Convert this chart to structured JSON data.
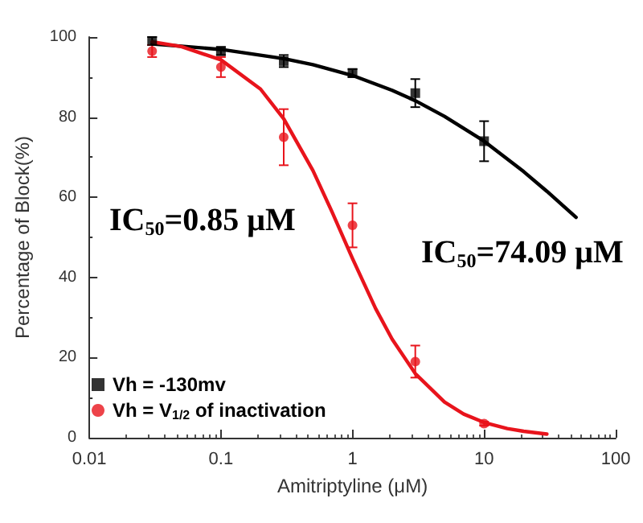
{
  "chart_data": {
    "type": "scatter",
    "xlabel": "Amitriptyline (μM)",
    "ylabel": "Percentage of Block(%)",
    "log": "x",
    "xlim": [
      0.01,
      100
    ],
    "xticks": [
      0.01,
      0.1,
      1,
      10,
      100
    ],
    "ylim": [
      0,
      100
    ],
    "yticks": [
      0,
      20,
      40,
      60,
      80,
      100
    ],
    "grid": false,
    "legend": "bottom left",
    "annotations": [
      "IC$_{50}$=0.85 μM",
      "IC$_{50}$=74.09 μM"
    ],
    "series": [
      {
        "name": "Vh = -130mv",
        "marker": "square",
        "color": "#000000",
        "x": [
          0.03,
          0.1,
          0.3,
          1,
          3,
          10
        ],
        "values": [
          99,
          96.5,
          94,
          91,
          86,
          74
        ],
        "errors": [
          1,
          1,
          1.5,
          1,
          3.5,
          5
        ]
      },
      {
        "name": "Vh = V$_{1/2}$ of inactivation",
        "marker": "circle",
        "color": "#e8141c",
        "x": [
          0.03,
          0.1,
          0.3,
          1,
          3,
          10
        ],
        "values": [
          96.5,
          92.5,
          75,
          53,
          19,
          3.5
        ],
        "errors": [
          1.5,
          2.5,
          7,
          5.5,
          4,
          0.5
        ]
      },
      {
        "type": "line",
        "marker": "none",
        "color": "#000000",
        "x": [
          0.03,
          0.1,
          0.3,
          0.5,
          1,
          2,
          3,
          5,
          10,
          20,
          30,
          50
        ],
        "values": [
          98.3,
          96.9,
          94.6,
          93.1,
          90.4,
          86.7,
          84.1,
          80.2,
          74.0,
          66.4,
          61.5,
          55.0
        ]
      },
      {
        "type": "line",
        "marker": "none",
        "color": "#e8141c",
        "x": [
          0.03,
          0.05,
          0.1,
          0.2,
          0.3,
          0.5,
          0.7,
          1,
          1.5,
          2,
          3,
          5,
          7,
          10,
          15,
          20,
          30
        ],
        "values": [
          98.8,
          97.6,
          94.3,
          87.0,
          79.6,
          66.7,
          56.3,
          44.7,
          32.2,
          24.6,
          16.0,
          8.9,
          5.9,
          3.8,
          2.3,
          1.6,
          0.9
        ]
      }
    ]
  }
}
